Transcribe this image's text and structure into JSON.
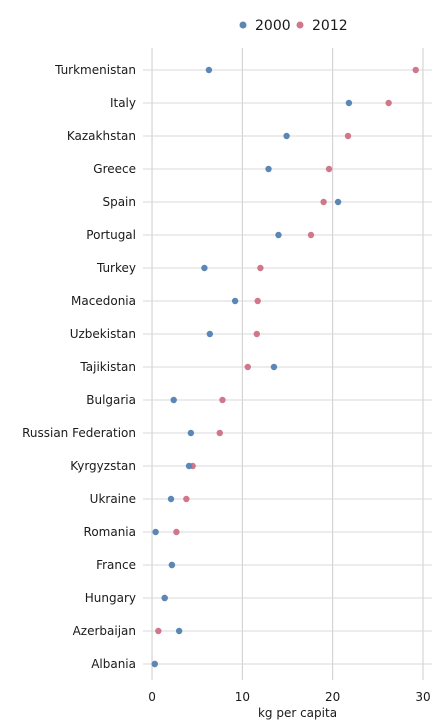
{
  "chart_data": {
    "type": "scatter",
    "subtype": "dot-plot",
    "title": "",
    "xlabel": "kg per capita",
    "ylabel": "",
    "xlim": [
      -1,
      31
    ],
    "xticks": [
      0,
      10,
      20,
      30
    ],
    "grid": true,
    "legend_position": "top",
    "categories": [
      "Turkmenistan",
      "Italy",
      "Kazakhstan",
      "Greece",
      "Spain",
      "Portugal",
      "Turkey",
      "Macedonia",
      "Uzbekistan",
      "Tajikistan",
      "Bulgaria",
      "Russian Federation",
      "Kyrgyzstan",
      "Ukraine",
      "Romania",
      "France",
      "Hungary",
      "Azerbaijan",
      "Albania"
    ],
    "series": [
      {
        "name": "2000",
        "color": "#5b87b6",
        "values": [
          6.3,
          21.8,
          14.9,
          12.9,
          20.6,
          14.0,
          5.8,
          9.2,
          6.4,
          13.5,
          2.4,
          4.3,
          4.1,
          2.1,
          0.4,
          2.2,
          1.4,
          3.0,
          0.3
        ]
      },
      {
        "name": "2012",
        "color": "#d0778b",
        "values": [
          29.2,
          26.2,
          21.7,
          19.6,
          19.0,
          17.6,
          12.0,
          11.7,
          11.6,
          10.6,
          7.8,
          7.5,
          4.5,
          3.8,
          2.7,
          2.2,
          1.4,
          0.7,
          0.3
        ]
      }
    ]
  }
}
